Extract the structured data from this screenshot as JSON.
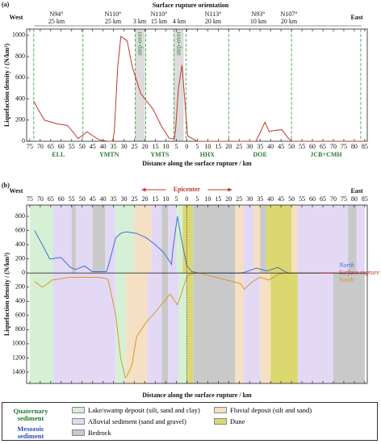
{
  "chart_data": [
    {
      "type": "line",
      "panel": "(a)",
      "title": "Surface rupture orientation",
      "west": "West",
      "east": "East",
      "orientations": [
        "N94°",
        "25 km",
        "N110°",
        "25 km",
        "3 km",
        "N110°",
        "15 km",
        "4 km",
        "N113°",
        "20 km",
        "N93°",
        "10 km",
        "N107°",
        "20 km"
      ],
      "xlabel": "Distance along the surface rupture / km",
      "ylabel": "Liquefaction density / (N/km²)",
      "color": "#c0392b",
      "x": [
        -73.1,
        -71,
        -68,
        -62,
        -57,
        -54,
        -52,
        -49.5,
        -47.7,
        -45.5,
        -42,
        -38,
        -35.4,
        -34.6,
        -33,
        -31.5,
        -28.5,
        -26,
        -22,
        -16,
        -12.3,
        -8.5,
        -6,
        -5.4,
        -4,
        -2.3,
        -1,
        0.4,
        5,
        33,
        35,
        37.3,
        39.4,
        41,
        45.4,
        48,
        50,
        85
      ],
      "values": [
        380,
        300,
        200,
        165,
        150,
        80,
        25,
        60,
        90,
        60,
        15,
        0,
        0,
        100,
        700,
        990,
        950,
        700,
        450,
        300,
        150,
        30,
        20,
        100,
        500,
        720,
        400,
        50,
        0,
        0,
        80,
        180,
        90,
        100,
        110,
        40,
        0,
        0
      ],
      "boundaries": [
        -73.1,
        -49.6,
        -24.6,
        -19.6,
        -6.2,
        -0.4,
        20,
        50,
        83.1
      ],
      "boundary_color": "#3a9a3a",
      "segments": [
        {
          "name": "ELL",
          "from": -73.1,
          "to": -49.6
        },
        {
          "name": "YMTN",
          "from": -49.6,
          "to": -24.6
        },
        {
          "name": "YMTS",
          "from": -19.6,
          "to": -6.2
        },
        {
          "name": "HHX",
          "from": -0.4,
          "to": 20
        },
        {
          "name": "DOE",
          "from": 20,
          "to": 50
        },
        {
          "name": "JCB+CMH",
          "from": 50,
          "to": 83.1
        }
      ],
      "step_overs": [
        {
          "label": "step-over",
          "from": -24.6,
          "to": -20
        },
        {
          "label": "step-over",
          "from": -6.2,
          "to": -1.5
        }
      ],
      "xlim": [
        -76.5,
        86.2
      ],
      "xticks": [
        {
          "value": -75,
          "label": "75"
        },
        {
          "value": -70,
          "label": "70"
        },
        {
          "value": -65,
          "label": "65"
        },
        {
          "value": -60,
          "label": "60"
        },
        {
          "value": -55,
          "label": "55"
        },
        {
          "value": -50,
          "label": "50"
        },
        {
          "value": -45,
          "label": "45"
        },
        {
          "value": -40,
          "label": "40"
        },
        {
          "value": -35,
          "label": "35"
        },
        {
          "value": -30,
          "label": "30"
        },
        {
          "value": -25,
          "label": "25"
        },
        {
          "value": -20,
          "label": "20"
        },
        {
          "value": -15,
          "label": "15"
        },
        {
          "value": -10,
          "label": "10"
        },
        {
          "value": -5,
          "label": "5"
        },
        0,
        5,
        10,
        15,
        20,
        25,
        30,
        35,
        40,
        45,
        50,
        55,
        60,
        65,
        70,
        75,
        80,
        85
      ],
      "ylim": [
        0,
        1060
      ],
      "yticks": [
        0,
        200,
        400,
        600,
        800,
        1000
      ]
    },
    {
      "type": "line",
      "panel": "(b)",
      "west": "West",
      "east": "East",
      "epicenter": "Epicenter",
      "surface_rupture": "Surface rupture",
      "xlabel": "Distance along the surface rupture / km",
      "ylabel": "Liquefaction density / (N/km²)",
      "x": [
        -72.7,
        -69,
        -65.5,
        -64.6,
        -60.1,
        -55.6,
        -53.3,
        -48.8,
        -45.2,
        -42,
        -38.4,
        -37.5,
        -33.9,
        -31.6,
        -29.4,
        -28.5,
        -26.2,
        -24,
        -19.5,
        -15,
        -11.4,
        -10.4,
        -9,
        -8.1,
        -7.3,
        -6.8,
        -4.5,
        -2.7,
        0,
        2.4,
        5.8,
        25.7,
        27.4,
        31.5,
        33.2,
        34.9,
        38.4,
        39.4,
        43.5,
        46.9,
        48.6,
        85
      ],
      "series": [
        {
          "name": "North",
          "color": "#3f6fd6",
          "values": [
            600,
            400,
            200,
            200,
            220,
            80,
            50,
            100,
            20,
            20,
            20,
            100,
            500,
            560,
            580,
            580,
            570,
            560,
            500,
            400,
            300,
            260,
            200,
            160,
            120,
            300,
            800,
            500,
            100,
            20,
            0,
            0,
            10,
            50,
            70,
            55,
            30,
            40,
            80,
            20,
            0,
            0
          ]
        },
        {
          "name": "South",
          "color": "#d69a2a",
          "values": [
            -120,
            -200,
            -130,
            -100,
            -80,
            -60,
            -60,
            -60,
            -60,
            -60,
            -80,
            -100,
            -600,
            -1200,
            -1480,
            -1450,
            -1300,
            -900,
            -700,
            -550,
            -420,
            -400,
            -330,
            -300,
            -320,
            -350,
            -450,
            -300,
            -50,
            -10,
            0,
            -150,
            -230,
            -120,
            -90,
            -60,
            -90,
            -100,
            -20,
            0,
            0,
            0
          ]
        }
      ],
      "legend": [
        {
          "group": "Quaternary sediment",
          "color": "#1f7a2a",
          "items": [
            {
              "name": "Lake/swamp deposit (silt, sand and clay)",
              "color": "#d6f0d6",
              "north": [
                [
                  -75,
                  -64
                ],
                [
                  -34,
                  -25
                ],
                [
                  -5,
                  -2
                ]
              ],
              "south": [
                [
                  -75,
                  -64
                ],
                [
                  -34,
                  -29
                ],
                [
                  -4,
                  0
                ]
              ]
            },
            {
              "name": "Fluvial deposit (silt and sand)",
              "color": "#f5e0c3",
              "north": [
                [
                  -25,
                  -17
                ],
                [
                  23,
                  27
                ],
                [
                  32,
                  35
                ],
                [
                  50,
                  53
                ]
              ],
              "south": [
                [
                  -29,
                  -19
                ],
                [
                  23,
                  27
                ],
                [
                  35,
                  40
                ]
              ]
            },
            {
              "name": "Alluvial sediment (sand and gravel)",
              "color": "#e3d9f5",
              "north": [
                [
                  -64,
                  -55
                ],
                [
                  -53,
                  -45
                ],
                [
                  -39,
                  -34
                ],
                [
                  -17,
                  -12
                ],
                [
                  -9,
                  -5
                ],
                [
                  27,
                  32
                ],
                [
                  53,
                  77
                ],
                [
                  81,
                  85
                ]
              ],
              "south": [
                [
                  -64,
                  -34
                ],
                [
                  -19,
                  -12
                ],
                [
                  -9,
                  -4
                ],
                [
                  27,
                  35
                ],
                [
                  53,
                  70
                ]
              ]
            },
            {
              "name": "Dune",
              "color": "#dcd870",
              "north": [
                [
                  -2,
                  3
                ],
                [
                  38,
                  50
                ]
              ],
              "south": [
                [
                  0,
                  3
                ],
                [
                  40,
                  53
                ]
              ]
            }
          ]
        },
        {
          "group": "Mesozoic sediment",
          "color": "#2a4fc0",
          "items": [
            {
              "name": "Bedrock",
              "color": "#c9c9c9",
              "north": [
                [
                  -55,
                  -53
                ],
                [
                  -45,
                  -39
                ],
                [
                  -12,
                  -9
                ],
                [
                  3,
                  23
                ],
                [
                  35,
                  38
                ],
                [
                  77,
                  81
                ]
              ],
              "south": [
                [
                  -12,
                  -9
                ],
                [
                  3,
                  23
                ],
                [
                  70,
                  85
                ]
              ]
            }
          ]
        }
      ],
      "xlim": [
        -76.5,
        86.2
      ],
      "xticks": [
        {
          "value": -75,
          "label": "75"
        },
        {
          "value": -70,
          "label": "70"
        },
        {
          "value": -65,
          "label": "65"
        },
        {
          "value": -60,
          "label": "60"
        },
        {
          "value": -55,
          "label": "55"
        },
        {
          "value": -50,
          "label": "50"
        },
        {
          "value": -45,
          "label": "45"
        },
        {
          "value": -40,
          "label": "40"
        },
        {
          "value": -35,
          "label": "35"
        },
        {
          "value": -30,
          "label": "30"
        },
        {
          "value": -25,
          "label": "25"
        },
        {
          "value": -20,
          "label": "20"
        },
        {
          "value": -15,
          "label": "15"
        },
        {
          "value": -10,
          "label": "10"
        },
        {
          "value": -5,
          "label": "5"
        },
        0,
        5,
        10,
        15,
        20,
        25,
        30,
        35,
        40,
        45,
        50,
        55,
        60,
        65,
        70,
        75,
        80,
        85
      ],
      "ylim": [
        -1560,
        960
      ],
      "yticks": [
        800,
        600,
        400,
        200,
        0,
        {
          "value": -200,
          "label": "200"
        },
        {
          "value": -400,
          "label": "400"
        },
        {
          "value": -600,
          "label": "600"
        },
        {
          "value": -800,
          "label": "800"
        },
        {
          "value": -1000,
          "label": "1000"
        },
        {
          "value": -1200,
          "label": "1200"
        },
        {
          "value": -1400,
          "label": "1400"
        }
      ]
    }
  ]
}
